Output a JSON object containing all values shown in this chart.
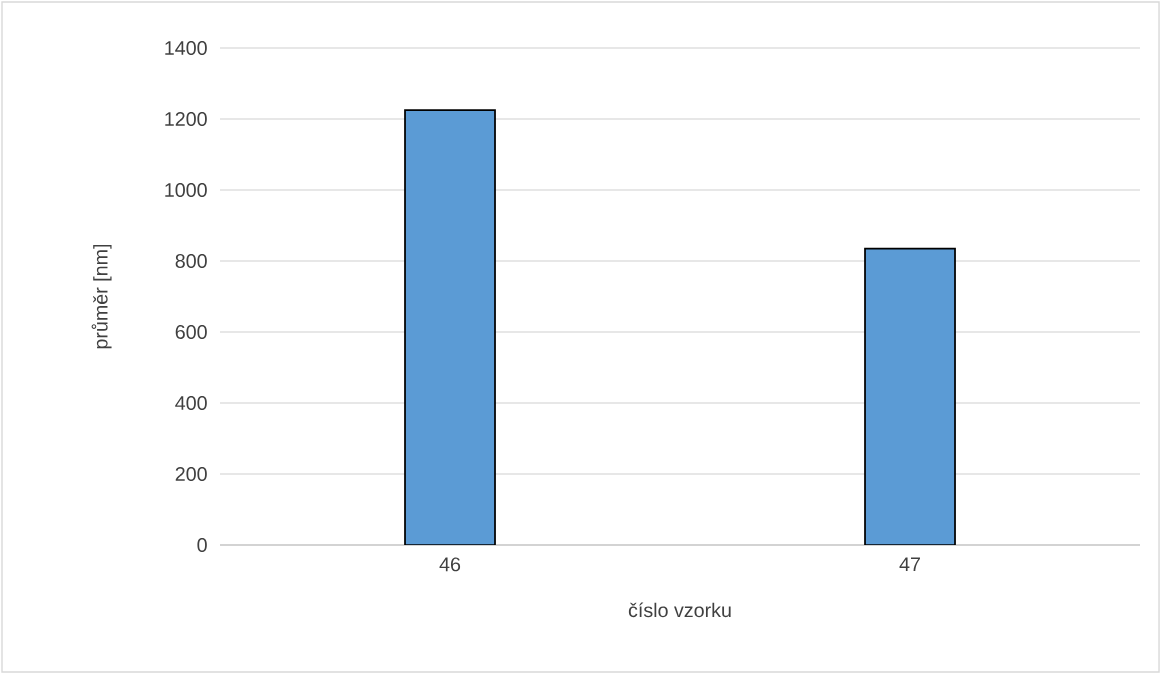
{
  "chart_data": {
    "type": "bar",
    "xlabel": "číslo vzorku",
    "ylabel": "průměr [nm]",
    "categories": [
      "46",
      "47"
    ],
    "values": [
      1225,
      835
    ],
    "color": "#5b9bd5",
    "ylim": [
      0,
      1400
    ],
    "yticks": [
      0,
      200,
      400,
      600,
      800,
      1000,
      1200,
      1400
    ],
    "grid": "y"
  }
}
